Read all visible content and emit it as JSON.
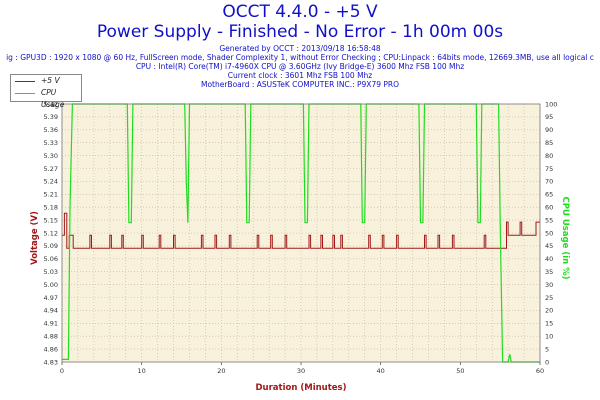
{
  "header": {
    "title": "OCCT 4.4.0 - +5 V",
    "subtitle": "Power Supply - Finished - No Error - 1h 00m 00s",
    "info_lines": [
      "Generated by OCCT : 2013/09/18 16:58:48",
      "ig : GPU3D : 1920 x 1080 @ 60 Hz, FullScreen mode, Shader Complexity 1, without Error Checking ; CPU:Linpack : 64bits mode, 12669.3MB, use all logical c",
      "CPU : Intel(R) Core(TM) i7-4960X CPU @ 3.60GHz (Ivy Bridge-E) 3600 Mhz FSB 100 Mhz",
      "Current clock : 3601 Mhz FSB 100 Mhz",
      "MotherBoard : ASUSTeK COMPUTER INC.: P9X79 PRO"
    ]
  },
  "colors": {
    "voltage": "#a01818",
    "cpu": "#20dc20",
    "text": "#1010c8",
    "plot_bg": "#f8f2dc",
    "grid": "#c8b496"
  },
  "chart_data": {
    "type": "line",
    "xlabel": "Duration (Minutes)",
    "ylabel": "Voltage (V)",
    "y2label": "CPU Usage (in %)",
    "xlim": [
      0,
      60
    ],
    "ylim": [
      4.83,
      5.42
    ],
    "y2lim": [
      0,
      100
    ],
    "x_ticks": [
      0,
      10,
      20,
      30,
      40,
      50,
      60
    ],
    "y_ticks": [
      "5.42",
      "5.39",
      "5.36",
      "5.33",
      "5.30",
      "5.27",
      "5.24",
      "5.21",
      "5.18",
      "5.15",
      "5.12",
      "5.09",
      "5.06",
      "5.03",
      "5.00",
      "4.97",
      "4.94",
      "4.91",
      "4.88",
      "4.86",
      "4.83"
    ],
    "y2_ticks": [
      0,
      5,
      10,
      15,
      20,
      25,
      30,
      35,
      40,
      45,
      50,
      55,
      60,
      65,
      70,
      75,
      80,
      85,
      90,
      95,
      100
    ],
    "grid": true,
    "legend_position": "top-left",
    "series": [
      {
        "name": "+5 V",
        "axis": "left",
        "x": [
          0,
          0.3,
          0.3,
          0.6,
          0.6,
          0.9,
          0.9,
          1.4,
          1.4,
          3.5,
          3.5,
          3.7,
          3.7,
          6.0,
          6.0,
          6.2,
          6.2,
          7.5,
          7.5,
          7.7,
          7.7,
          10.0,
          10.0,
          10.2,
          10.2,
          12.2,
          12.2,
          12.4,
          12.4,
          14.0,
          14.0,
          14.2,
          14.2,
          17.5,
          17.5,
          17.7,
          17.7,
          19.2,
          19.2,
          19.4,
          19.4,
          21.0,
          21.0,
          21.2,
          21.2,
          24.5,
          24.5,
          24.7,
          24.7,
          26.2,
          26.2,
          26.4,
          26.4,
          28.0,
          28.0,
          28.2,
          28.2,
          31.0,
          31.0,
          31.2,
          31.2,
          32.5,
          32.5,
          32.7,
          32.7,
          34.0,
          34.0,
          34.2,
          34.2,
          35.0,
          35.0,
          35.2,
          35.2,
          38.5,
          38.5,
          38.7,
          38.7,
          40.2,
          40.2,
          40.4,
          40.4,
          42.0,
          42.0,
          42.2,
          42.2,
          45.5,
          45.5,
          45.7,
          45.7,
          47.2,
          47.2,
          47.4,
          47.4,
          49.0,
          49.0,
          49.2,
          49.2,
          53.0,
          53.0,
          53.2,
          53.2,
          55.8,
          55.8,
          56.0,
          56.0,
          57.5,
          57.5,
          57.7,
          57.7,
          59.5,
          59.5,
          60
        ],
        "values": [
          5.12,
          5.12,
          5.17,
          5.17,
          5.09,
          5.09,
          5.12,
          5.12,
          5.09,
          5.09,
          5.12,
          5.12,
          5.09,
          5.09,
          5.12,
          5.12,
          5.09,
          5.09,
          5.12,
          5.12,
          5.09,
          5.09,
          5.12,
          5.12,
          5.09,
          5.09,
          5.12,
          5.12,
          5.09,
          5.09,
          5.12,
          5.12,
          5.09,
          5.09,
          5.12,
          5.12,
          5.09,
          5.09,
          5.12,
          5.12,
          5.09,
          5.09,
          5.12,
          5.12,
          5.09,
          5.09,
          5.12,
          5.12,
          5.09,
          5.09,
          5.12,
          5.12,
          5.09,
          5.09,
          5.12,
          5.12,
          5.09,
          5.09,
          5.12,
          5.12,
          5.09,
          5.09,
          5.12,
          5.12,
          5.09,
          5.09,
          5.12,
          5.12,
          5.09,
          5.09,
          5.12,
          5.12,
          5.09,
          5.09,
          5.12,
          5.12,
          5.09,
          5.09,
          5.12,
          5.12,
          5.09,
          5.09,
          5.12,
          5.12,
          5.09,
          5.09,
          5.12,
          5.12,
          5.09,
          5.09,
          5.12,
          5.12,
          5.09,
          5.09,
          5.12,
          5.12,
          5.09,
          5.09,
          5.12,
          5.12,
          5.09,
          5.09,
          5.15,
          5.15,
          5.12,
          5.12,
          5.15,
          5.15,
          5.12,
          5.12,
          5.15,
          5.15
        ]
      },
      {
        "name": "CPU Usage",
        "axis": "right",
        "x": [
          0,
          0.8,
          1.0,
          1.3,
          8.2,
          8.4,
          8.7,
          8.9,
          15.4,
          15.6,
          15.8,
          16.0,
          23.0,
          23.2,
          23.5,
          23.7,
          30.3,
          30.5,
          30.8,
          31.0,
          37.5,
          37.7,
          38.0,
          38.2,
          44.8,
          45.0,
          45.3,
          45.5,
          52.0,
          52.2,
          52.5,
          52.7,
          54.8,
          55.0,
          55.3,
          56.0,
          56.2,
          56.4,
          57.0,
          60
        ],
        "values": [
          1,
          1,
          60,
          100,
          100,
          54,
          54,
          100,
          100,
          70,
          54,
          100,
          100,
          54,
          54,
          100,
          100,
          54,
          54,
          100,
          100,
          54,
          54,
          100,
          100,
          54,
          54,
          100,
          100,
          54,
          54,
          100,
          100,
          54,
          0,
          0,
          3,
          0,
          0,
          0
        ]
      }
    ]
  }
}
